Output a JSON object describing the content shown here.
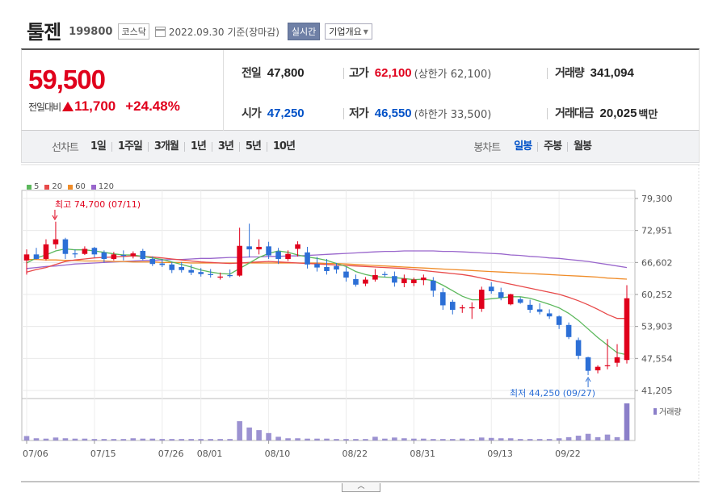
{
  "header": {
    "name": "툴젠",
    "code": "199800",
    "market": "코스닥",
    "date": "2022.09.30 기준(장마감)",
    "realtime_label": "실시간",
    "company_label": "기업개요"
  },
  "summary": {
    "price": "59,500",
    "change_label": "전일대비",
    "change_value": "11,700",
    "change_pct": "+24.48%",
    "prev_label": "전일",
    "prev_value": "47,800",
    "open_label": "시가",
    "open_value": "47,250",
    "high_label": "고가",
    "high_value": "62,100",
    "high_sub": "(상한가 62,100)",
    "low_label": "저가",
    "low_value": "46,550",
    "low_sub": "(하한가 33,500)",
    "volume_label": "거래량",
    "volume_value": "341,094",
    "amount_label": "거래대금",
    "amount_value": "20,025",
    "amount_unit": "백만"
  },
  "toolbar": {
    "line_label": "선차트",
    "line_items": [
      "1일",
      "1주일",
      "3개월",
      "1년",
      "3년",
      "5년",
      "10년"
    ],
    "candle_label": "봉차트",
    "candle_items": [
      "일봉",
      "주봉",
      "월봉"
    ],
    "active_candle": "일봉"
  },
  "colors": {
    "up": "#e0001c",
    "down": "#2c6fd6",
    "ma5": "#5cb85c",
    "ma20": "#e84a4a",
    "ma60": "#f08c28",
    "ma120": "#9966cc",
    "volume": "#8b7fc9"
  },
  "chart_data": {
    "type": "candlestick",
    "y_ticks": [
      "79,300",
      "72,951",
      "66,602",
      "60,252",
      "53,903",
      "47,554",
      "41,205"
    ],
    "ylim": [
      41205,
      79300
    ],
    "x_tick_labels": [
      "07/06",
      "07/15",
      "07/26",
      "08/01",
      "08/10",
      "08/22",
      "08/31",
      "09/13",
      "09/22"
    ],
    "legend": [
      {
        "name": "5",
        "color": "#5cb85c"
      },
      {
        "name": "20",
        "color": "#e84a4a"
      },
      {
        "name": "60",
        "color": "#f08c28"
      },
      {
        "name": "120",
        "color": "#9966cc"
      }
    ],
    "volume_label": "거래량",
    "annotation_high": "최고 74,700 (07/11)",
    "annotation_low": "최저 44,250 (09/27)",
    "candles": [
      [
        67000,
        69200,
        64200,
        68200
      ],
      [
        68200,
        69500,
        67200,
        67300
      ],
      [
        67300,
        71200,
        67000,
        70200
      ],
      [
        70200,
        74700,
        69300,
        71200
      ],
      [
        71200,
        71500,
        67300,
        68300
      ],
      [
        68400,
        69200,
        67500,
        68300
      ],
      [
        68300,
        69800,
        68100,
        69300
      ],
      [
        69500,
        69700,
        67600,
        68200
      ],
      [
        68600,
        69000,
        66600,
        67300
      ],
      [
        67300,
        68700,
        67000,
        68200
      ],
      [
        68100,
        69000,
        67000,
        67900
      ],
      [
        67900,
        68800,
        67400,
        68400
      ],
      [
        68900,
        69300,
        67000,
        67300
      ],
      [
        67300,
        67800,
        65900,
        66300
      ],
      [
        66400,
        67300,
        65700,
        66100
      ],
      [
        66200,
        66700,
        64500,
        65100
      ],
      [
        65700,
        66700,
        64600,
        65100
      ],
      [
        65100,
        66200,
        64100,
        64600
      ],
      [
        64700,
        65500,
        63800,
        64300
      ],
      [
        64300,
        65300,
        63600,
        64100
      ],
      [
        63600,
        64600,
        63200,
        63800
      ],
      [
        64100,
        65200,
        63600,
        63900
      ],
      [
        64000,
        73500,
        63800,
        69900
      ],
      [
        69800,
        74300,
        67600,
        69200
      ],
      [
        69200,
        71200,
        68200,
        69700
      ],
      [
        69800,
        70700,
        67300,
        68000
      ],
      [
        68800,
        69500,
        66300,
        67300
      ],
      [
        67300,
        69000,
        66900,
        68300
      ],
      [
        69300,
        70800,
        67800,
        70200
      ],
      [
        68600,
        69700,
        65400,
        66200
      ],
      [
        66300,
        67700,
        64800,
        65600
      ],
      [
        65700,
        67300,
        64200,
        64900
      ],
      [
        65900,
        66500,
        64400,
        65200
      ],
      [
        64800,
        65700,
        62800,
        63600
      ],
      [
        63300,
        64200,
        61800,
        62200
      ],
      [
        62400,
        63700,
        61900,
        63200
      ],
      [
        63200,
        65300,
        62800,
        64100
      ],
      [
        64300,
        64800,
        63700,
        64200
      ],
      [
        63900,
        64800,
        61800,
        62600
      ],
      [
        62500,
        64200,
        61700,
        63400
      ],
      [
        62500,
        63600,
        61900,
        63200
      ],
      [
        63100,
        64200,
        62100,
        63600
      ],
      [
        63000,
        63700,
        59800,
        61000
      ],
      [
        60700,
        61500,
        57200,
        58100
      ],
      [
        58800,
        59200,
        56300,
        57200
      ],
      [
        57500,
        58200,
        56600,
        57700
      ],
      [
        57600,
        58700,
        55400,
        57700
      ],
      [
        57400,
        61800,
        56800,
        61200
      ],
      [
        61800,
        62700,
        60400,
        60900
      ],
      [
        60700,
        61600,
        59100,
        59600
      ],
      [
        58300,
        60400,
        58100,
        60300
      ],
      [
        59300,
        59700,
        58400,
        58600
      ],
      [
        58200,
        59200,
        56600,
        57200
      ],
      [
        57300,
        58500,
        56300,
        56800
      ],
      [
        56500,
        57300,
        55400,
        55900
      ],
      [
        55900,
        56100,
        53400,
        54200
      ],
      [
        54200,
        54700,
        51400,
        51800
      ],
      [
        51200,
        51700,
        47400,
        48100
      ],
      [
        47800,
        47900,
        44250,
        45100
      ],
      [
        45200,
        46200,
        44600,
        45900
      ],
      [
        46200,
        51400,
        45400,
        46200
      ],
      [
        46700,
        50400,
        45900,
        47800
      ],
      [
        47250,
        62100,
        46550,
        59500
      ]
    ],
    "ma5": [
      66500,
      67500,
      68100,
      68900,
      69300,
      69100,
      69100,
      68900,
      68600,
      68300,
      68100,
      68100,
      67800,
      67500,
      67200,
      66700,
      66200,
      65700,
      65100,
      64700,
      64400,
      64300,
      65400,
      66500,
      67600,
      68400,
      68900,
      68600,
      68100,
      67700,
      67400,
      67000,
      66400,
      65800,
      64800,
      64200,
      63800,
      63700,
      63600,
      63400,
      63200,
      63300,
      63000,
      62100,
      61000,
      59900,
      59200,
      59200,
      59400,
      59600,
      59800,
      59800,
      59500,
      58900,
      58300,
      57600,
      56500,
      55100,
      53400,
      51700,
      50200,
      48700,
      48300
    ],
    "ma20": [
      64700,
      65200,
      65600,
      66200,
      66800,
      67100,
      67300,
      67500,
      67600,
      67700,
      67800,
      67900,
      67800,
      67700,
      67500,
      67300,
      67100,
      66900,
      66700,
      66600,
      66500,
      66400,
      66500,
      66600,
      66700,
      66800,
      66700,
      66600,
      66500,
      66400,
      66300,
      66200,
      66100,
      66000,
      65900,
      65800,
      65700,
      65600,
      65500,
      65400,
      65200,
      65000,
      64800,
      64600,
      64400,
      64200,
      63900,
      63500,
      63100,
      62700,
      62300,
      61900,
      61500,
      61100,
      60700,
      60300,
      59700,
      59000,
      58200,
      57300,
      56300,
      55500,
      55500
    ],
    "ma60": [
      67200,
      67200,
      67100,
      67100,
      67000,
      67000,
      66900,
      66900,
      66900,
      66800,
      66800,
      66700,
      66700,
      66700,
      66600,
      66600,
      66600,
      66500,
      66500,
      66500,
      66500,
      66500,
      66500,
      66500,
      66500,
      66500,
      66500,
      66500,
      66500,
      66500,
      66500,
      66400,
      66400,
      66300,
      66200,
      66100,
      66000,
      65900,
      65800,
      65700,
      65600,
      65500,
      65400,
      65300,
      65200,
      65100,
      65000,
      64900,
      64800,
      64700,
      64600,
      64500,
      64400,
      64300,
      64200,
      64100,
      64000,
      63900,
      63800,
      63700,
      63500,
      63400,
      63300
    ],
    "ma120": [
      65400,
      65600,
      65800,
      65900,
      66100,
      66300,
      66400,
      66500,
      66600,
      66700,
      66800,
      66900,
      67000,
      67000,
      67100,
      67200,
      67200,
      67300,
      67400,
      67400,
      67500,
      67600,
      67600,
      67700,
      67700,
      67800,
      67800,
      67900,
      67900,
      68000,
      68100,
      68200,
      68300,
      68400,
      68500,
      68600,
      68700,
      68800,
      68800,
      68900,
      68900,
      68900,
      68900,
      68800,
      68800,
      68700,
      68600,
      68500,
      68400,
      68300,
      68100,
      68000,
      67800,
      67700,
      67500,
      67400,
      67200,
      67000,
      66800,
      66500,
      66200,
      65900,
      65600
    ],
    "volume": [
      0.12,
      0.06,
      0.05,
      0.08,
      0.06,
      0.05,
      0.05,
      0.04,
      0.04,
      0.04,
      0.04,
      0.06,
      0.05,
      0.05,
      0.04,
      0.04,
      0.04,
      0.04,
      0.04,
      0.04,
      0.04,
      0.04,
      0.52,
      0.35,
      0.28,
      0.2,
      0.1,
      0.06,
      0.06,
      0.05,
      0.05,
      0.05,
      0.04,
      0.04,
      0.04,
      0.04,
      0.1,
      0.05,
      0.08,
      0.06,
      0.05,
      0.05,
      0.04,
      0.04,
      0.04,
      0.05,
      0.04,
      0.08,
      0.07,
      0.06,
      0.06,
      0.04,
      0.04,
      0.04,
      0.04,
      0.06,
      0.09,
      0.13,
      0.18,
      0.09,
      0.16,
      0.09,
      1.0
    ]
  }
}
